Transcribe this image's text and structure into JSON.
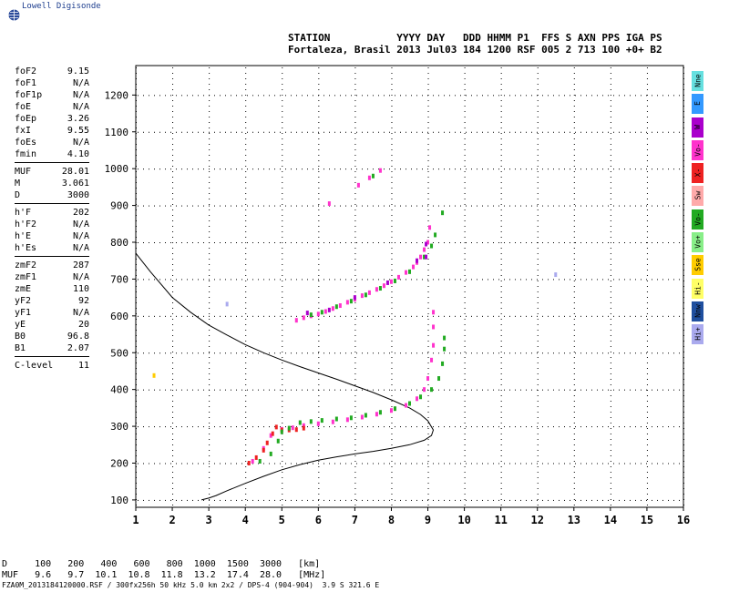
{
  "logo_text": "Lowell Digisonde",
  "header": {
    "line1": "STATION           YYYY DAY   DDD HHMM P1  FFS S AXN PPS IGA PS",
    "line2": "Fortaleza, Brasil 2013 Jul03 184 1200 RSF 005 2 713 100 +0+ B2"
  },
  "params": {
    "group1": [
      {
        "name": "foF2",
        "value": "9.15"
      },
      {
        "name": "foF1",
        "value": "N/A"
      },
      {
        "name": "foF1p",
        "value": "N/A"
      },
      {
        "name": "foE",
        "value": "N/A"
      },
      {
        "name": "foEp",
        "value": "3.26"
      },
      {
        "name": "fxI",
        "value": "9.55"
      },
      {
        "name": "foEs",
        "value": "N/A"
      },
      {
        "name": "fmin",
        "value": "4.10"
      }
    ],
    "group2": [
      {
        "name": "MUF",
        "value": "28.01"
      },
      {
        "name": "M",
        "value": "3.061"
      },
      {
        "name": "D",
        "value": "3000"
      }
    ],
    "group3": [
      {
        "name": "h'F",
        "value": "202"
      },
      {
        "name": "h'F2",
        "value": "N/A"
      },
      {
        "name": "h'E",
        "value": "N/A"
      },
      {
        "name": "h'Es",
        "value": "N/A"
      }
    ],
    "group4": [
      {
        "name": "zmF2",
        "value": "287"
      },
      {
        "name": "zmF1",
        "value": "N/A"
      },
      {
        "name": "zmE",
        "value": "110"
      },
      {
        "name": "yF2",
        "value": "92"
      },
      {
        "name": "yF1",
        "value": "N/A"
      },
      {
        "name": "yE",
        "value": "20"
      },
      {
        "name": "B0",
        "value": "96.8"
      },
      {
        "name": "B1",
        "value": "2.07"
      }
    ],
    "group5": [
      {
        "name": "C-level",
        "value": "11"
      }
    ]
  },
  "legend": [
    {
      "label": "Nne",
      "color": "#66e0e0"
    },
    {
      "label": "E",
      "color": "#3399ff"
    },
    {
      "label": "W",
      "color": "#aa00cc"
    },
    {
      "label": "Vo-",
      "color": "#ff33cc"
    },
    {
      "label": "X-",
      "color": "#ee2222"
    },
    {
      "label": "Sw",
      "color": "#ffaaaa"
    },
    {
      "label": "Vo-",
      "color": "#22aa22"
    },
    {
      "label": "Vo+",
      "color": "#88ee88"
    },
    {
      "label": "Sse",
      "color": "#ffcc00"
    },
    {
      "label": "Hi-",
      "color": "#ffff66"
    },
    {
      "label": "Nnw",
      "color": "#1f4f9f"
    },
    {
      "label": "Hi+",
      "color": "#aaaaee"
    }
  ],
  "footer": {
    "line1": "D     100   200   400   600   800  1000  1500  3000   [km]",
    "line2": "MUF   9.6   9.7  10.1  10.8  11.8  13.2  17.4  28.0   [MHz]",
    "line3": "FZA0M_2013184120000.RSF / 300fx256h 50 kHz 5.0 km 2x2 / DPS-4 (904-904)  3.9 S 321.6 E"
  },
  "chart_data": {
    "type": "scatter",
    "title": "",
    "xlabel": "",
    "ylabel": "",
    "xlim": [
      1,
      16
    ],
    "ylim": [
      80,
      1280
    ],
    "x_ticks": [
      1,
      2,
      3,
      4,
      5,
      6,
      7,
      8,
      9,
      10,
      11,
      12,
      13,
      14,
      15,
      16
    ],
    "y_ticks": [
      100,
      200,
      300,
      400,
      500,
      600,
      700,
      800,
      900,
      1000,
      1100,
      1200
    ],
    "profile_line": {
      "name": "",
      "x": [
        1.0,
        1.4,
        2.0,
        2.5,
        3.0,
        3.5,
        4.0,
        4.5,
        5.0,
        5.5,
        6.0,
        6.5,
        7.0,
        7.5,
        8.0,
        8.5,
        8.8,
        9.0,
        9.15,
        9.1,
        8.9,
        8.5,
        8.0,
        7.5,
        7.0,
        6.5,
        6.0,
        5.5,
        5.0,
        4.5,
        4.0,
        3.5,
        3.2,
        3.0,
        2.8
      ],
      "y": [
        770,
        720,
        650,
        610,
        575,
        548,
        522,
        500,
        480,
        462,
        445,
        428,
        410,
        392,
        372,
        350,
        332,
        315,
        290,
        275,
        262,
        250,
        240,
        232,
        225,
        217,
        208,
        196,
        182,
        164,
        145,
        125,
        112,
        105,
        100
      ]
    },
    "series": [
      {
        "name": "",
        "color": "#ff33cc",
        "points": [
          [
            5.4,
            588
          ],
          [
            5.6,
            595
          ],
          [
            5.8,
            600
          ],
          [
            6.0,
            605
          ],
          [
            6.2,
            612
          ],
          [
            6.4,
            620
          ],
          [
            6.6,
            628
          ],
          [
            6.8,
            637
          ],
          [
            7.0,
            645
          ],
          [
            7.2,
            655
          ],
          [
            7.4,
            663
          ],
          [
            7.6,
            672
          ],
          [
            7.8,
            682
          ],
          [
            8.0,
            693
          ],
          [
            8.2,
            705
          ],
          [
            8.4,
            718
          ],
          [
            8.6,
            733
          ],
          [
            8.7,
            745
          ],
          [
            8.8,
            760
          ],
          [
            8.9,
            780
          ],
          [
            9.0,
            800
          ],
          [
            9.05,
            840
          ],
          [
            4.2,
            205
          ],
          [
            4.5,
            240
          ],
          [
            4.7,
            275
          ],
          [
            5.0,
            292
          ],
          [
            5.3,
            296
          ],
          [
            5.6,
            302
          ],
          [
            6.0,
            307
          ],
          [
            6.4,
            312
          ],
          [
            6.8,
            318
          ],
          [
            7.2,
            325
          ],
          [
            7.6,
            333
          ],
          [
            8.0,
            343
          ],
          [
            8.4,
            357
          ],
          [
            8.7,
            375
          ],
          [
            8.9,
            400
          ],
          [
            9.0,
            430
          ],
          [
            9.1,
            480
          ],
          [
            9.15,
            520
          ],
          [
            9.15,
            570
          ],
          [
            9.15,
            610
          ],
          [
            7.1,
            955
          ],
          [
            7.4,
            975
          ],
          [
            7.7,
            995
          ],
          [
            6.3,
            905
          ]
        ]
      },
      {
        "name": "",
        "color": "#ee2222",
        "points": [
          [
            4.1,
            200
          ],
          [
            4.3,
            215
          ],
          [
            4.5,
            235
          ],
          [
            4.6,
            255
          ],
          [
            4.75,
            280
          ],
          [
            4.85,
            298
          ],
          [
            5.0,
            290
          ],
          [
            5.2,
            290
          ],
          [
            5.4,
            291
          ],
          [
            5.6,
            295
          ]
        ]
      },
      {
        "name": "",
        "color": "#22aa22",
        "points": [
          [
            4.4,
            205
          ],
          [
            4.7,
            225
          ],
          [
            4.9,
            260
          ],
          [
            5.0,
            285
          ],
          [
            5.2,
            295
          ],
          [
            5.5,
            310
          ],
          [
            5.8,
            313
          ],
          [
            6.1,
            316
          ],
          [
            6.5,
            320
          ],
          [
            6.9,
            323
          ],
          [
            7.3,
            330
          ],
          [
            7.7,
            338
          ],
          [
            8.1,
            348
          ],
          [
            8.5,
            362
          ],
          [
            8.8,
            380
          ],
          [
            9.1,
            400
          ],
          [
            9.3,
            430
          ],
          [
            9.4,
            470
          ],
          [
            9.45,
            510
          ],
          [
            9.45,
            540
          ],
          [
            5.8,
            603
          ],
          [
            6.1,
            610
          ],
          [
            6.5,
            625
          ],
          [
            6.9,
            640
          ],
          [
            7.3,
            657
          ],
          [
            7.7,
            675
          ],
          [
            8.1,
            695
          ],
          [
            8.5,
            720
          ],
          [
            8.9,
            760
          ],
          [
            9.1,
            790
          ],
          [
            9.2,
            820
          ],
          [
            9.4,
            880
          ],
          [
            7.5,
            980
          ]
        ]
      },
      {
        "name": "",
        "color": "#aa00cc",
        "points": [
          [
            5.7,
            608
          ],
          [
            6.3,
            616
          ],
          [
            7.0,
            650
          ],
          [
            7.9,
            690
          ],
          [
            8.7,
            750
          ],
          [
            8.95,
            795
          ],
          [
            8.95,
            760
          ]
        ]
      },
      {
        "name": "",
        "color": "#ffcc00",
        "points": [
          [
            1.5,
            438
          ]
        ]
      },
      {
        "name": "",
        "color": "#aaaaee",
        "points": [
          [
            3.5,
            632
          ],
          [
            12.5,
            712
          ]
        ]
      }
    ]
  }
}
